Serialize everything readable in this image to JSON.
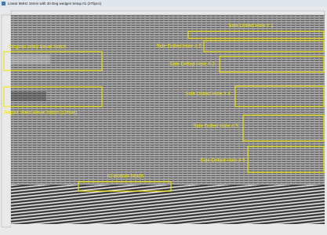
{
  "window": {
    "title": "Linear 5MHz 16mm with 30 Deg wedges  Setup 01 (270pcs)"
  },
  "annotations": [
    {
      "label": "Side Drilled Hole # 1"
    },
    {
      "label": "Side Drilled Hole # 2"
    },
    {
      "label": "Side Drilled Hole # 3"
    },
    {
      "label": "Side Drilled Hole # 4"
    },
    {
      "label": "Side Drilled Hole # 5"
    },
    {
      "label": "Side Drilled Hole # 5"
    },
    {
      "label": "Original Weld  Bevel Notch"
    },
    {
      "label": "Repair Weld  Bevel Notch (Offset)"
    },
    {
      "label": "ID Bottom Notch"
    }
  ]
}
